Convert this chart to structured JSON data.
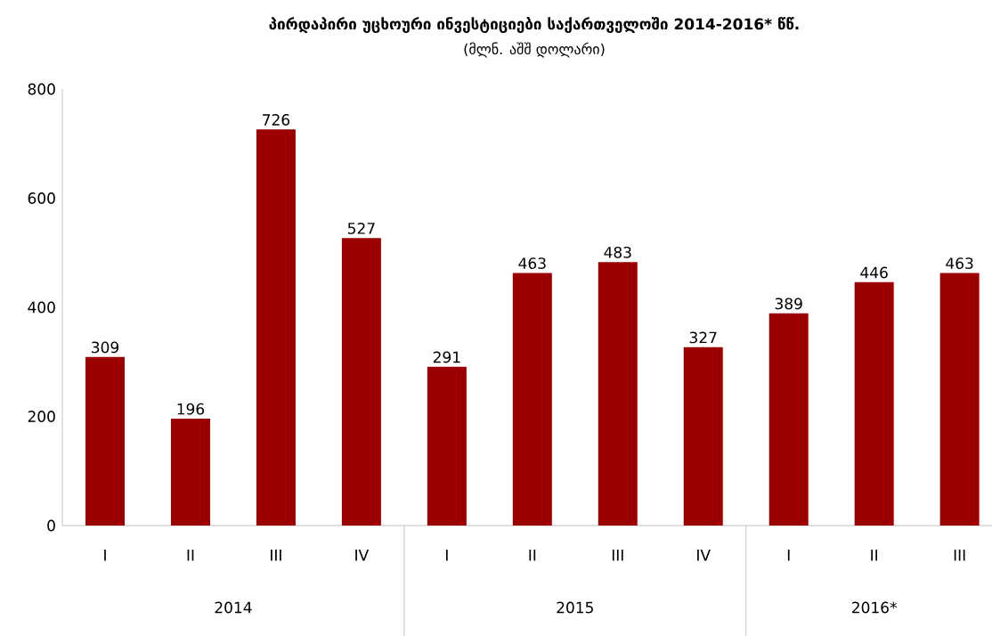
{
  "chart_data": {
    "type": "bar",
    "title": "პირდაპირი უცხოური ინვესტიციები საქართველოში  2014-2016* წწ.",
    "subtitle": "(მლნ. აშშ დოლარი)",
    "categories": [
      "I",
      "II",
      "III",
      "IV",
      "I",
      "II",
      "III",
      "IV",
      "I",
      "II",
      "III"
    ],
    "values": [
      309,
      196,
      726,
      527,
      291,
      463,
      483,
      327,
      389,
      446,
      463
    ],
    "color": "#9b0000",
    "ylim": [
      0,
      800
    ],
    "yticks": [
      0,
      200,
      400,
      600,
      800
    ],
    "data_labels": true,
    "grid": false,
    "annotations": [
      "2014",
      "2015",
      "2016*"
    ]
  }
}
